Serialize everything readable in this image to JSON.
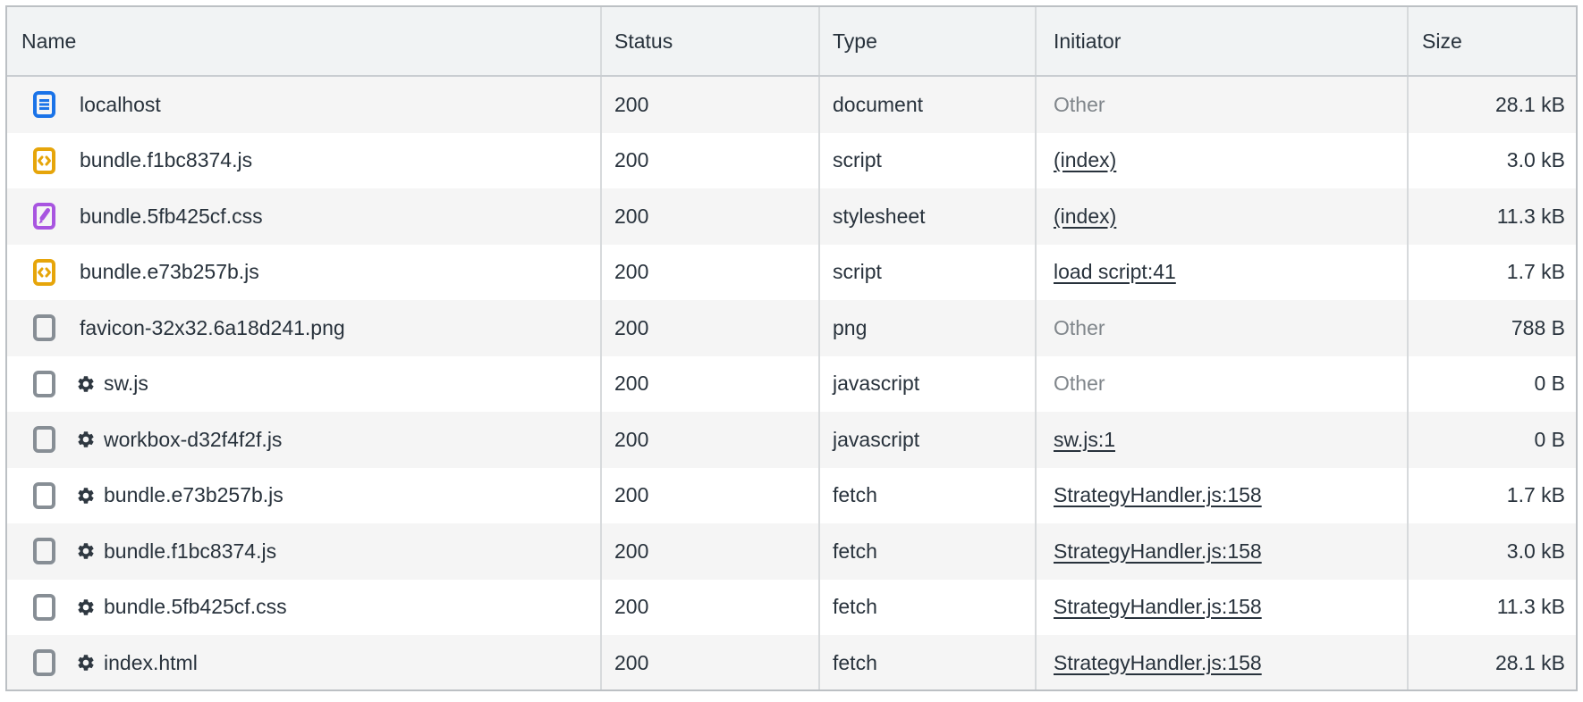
{
  "table": {
    "columns": [
      {
        "label": "Name"
      },
      {
        "label": "Status"
      },
      {
        "label": "Type"
      },
      {
        "label": "Initiator"
      },
      {
        "label": "Size"
      }
    ],
    "rows": [
      {
        "name": "localhost",
        "icon": "document-icon",
        "gear": false,
        "status": "200",
        "type": "document",
        "initiator": "Other",
        "initiator_is_link": false,
        "size": "28.1 kB"
      },
      {
        "name": "bundle.f1bc8374.js",
        "icon": "script-icon",
        "gear": false,
        "status": "200",
        "type": "script",
        "initiator": "(index)",
        "initiator_is_link": true,
        "size": "3.0 kB"
      },
      {
        "name": "bundle.5fb425cf.css",
        "icon": "stylesheet-icon",
        "gear": false,
        "status": "200",
        "type": "stylesheet",
        "initiator": "(index)",
        "initiator_is_link": true,
        "size": "11.3 kB"
      },
      {
        "name": "bundle.e73b257b.js",
        "icon": "script-icon",
        "gear": false,
        "status": "200",
        "type": "script",
        "initiator": "load script:41",
        "initiator_is_link": true,
        "size": "1.7 kB"
      },
      {
        "name": "favicon-32x32.6a18d241.png",
        "icon": "generic-icon",
        "gear": false,
        "status": "200",
        "type": "png",
        "initiator": "Other",
        "initiator_is_link": false,
        "size": "788 B"
      },
      {
        "name": "sw.js",
        "icon": "generic-icon",
        "gear": true,
        "status": "200",
        "type": "javascript",
        "initiator": "Other",
        "initiator_is_link": false,
        "size": "0 B"
      },
      {
        "name": "workbox-d32f4f2f.js",
        "icon": "generic-icon",
        "gear": true,
        "status": "200",
        "type": "javascript",
        "initiator": "sw.js:1",
        "initiator_is_link": true,
        "size": "0 B"
      },
      {
        "name": "bundle.e73b257b.js",
        "icon": "generic-icon",
        "gear": true,
        "status": "200",
        "type": "fetch",
        "initiator": "StrategyHandler.js:158",
        "initiator_is_link": true,
        "size": "1.7 kB"
      },
      {
        "name": "bundle.f1bc8374.js",
        "icon": "generic-icon",
        "gear": true,
        "status": "200",
        "type": "fetch",
        "initiator": "StrategyHandler.js:158",
        "initiator_is_link": true,
        "size": "3.0 kB"
      },
      {
        "name": "bundle.5fb425cf.css",
        "icon": "generic-icon",
        "gear": true,
        "status": "200",
        "type": "fetch",
        "initiator": "StrategyHandler.js:158",
        "initiator_is_link": true,
        "size": "11.3 kB"
      },
      {
        "name": "index.html",
        "icon": "generic-icon",
        "gear": true,
        "status": "200",
        "type": "fetch",
        "initiator": "StrategyHandler.js:158",
        "initiator_is_link": true,
        "size": "28.1 kB"
      }
    ],
    "colors": {
      "document_icon": "#1a73e8",
      "script_icon": "#e6a50a",
      "stylesheet_icon": "#a855e0",
      "generic_icon": "#878e95",
      "gear_icon": "#2f3841",
      "text": "#28323c",
      "muted_text": "#80868b",
      "header_bg": "#f1f3f4",
      "stripe_bg": "#f5f5f5",
      "border": "#bcc0c4"
    }
  }
}
